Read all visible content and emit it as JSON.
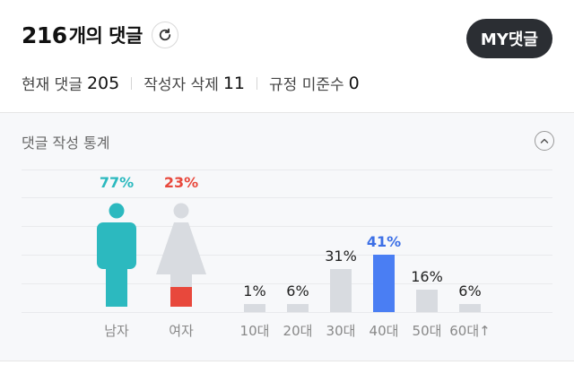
{
  "header": {
    "comment_count": "216",
    "comment_suffix": "개의 댓글",
    "refresh_icon": "refresh-icon",
    "my_button_label": "MY댓글"
  },
  "counts": {
    "current_label": "현재 댓글",
    "current_value": "205",
    "deleted_label": "작성자 삭제",
    "deleted_value": "11",
    "violation_label": "규정 미준수",
    "violation_value": "0"
  },
  "stats": {
    "title": "댓글 작성 통계",
    "collapse_icon": "chevron-up-icon"
  },
  "chart_data": [
    {
      "type": "bar",
      "categories": [
        "남자",
        "여자"
      ],
      "values": [
        77,
        23
      ],
      "data_labels": [
        "77%",
        "23%"
      ],
      "colors": [
        "#2cb9bf",
        "#e8483c"
      ]
    },
    {
      "type": "bar",
      "categories": [
        "10대",
        "20대",
        "30대",
        "40대",
        "50대",
        "60대↑"
      ],
      "values": [
        1,
        6,
        31,
        41,
        16,
        6
      ],
      "data_labels": [
        "1%",
        "6%",
        "31%",
        "41%",
        "16%",
        "6%"
      ],
      "highlight": "40대",
      "highlight_color": "#4a7ef3",
      "bar_color": "#d8dbe0"
    }
  ]
}
